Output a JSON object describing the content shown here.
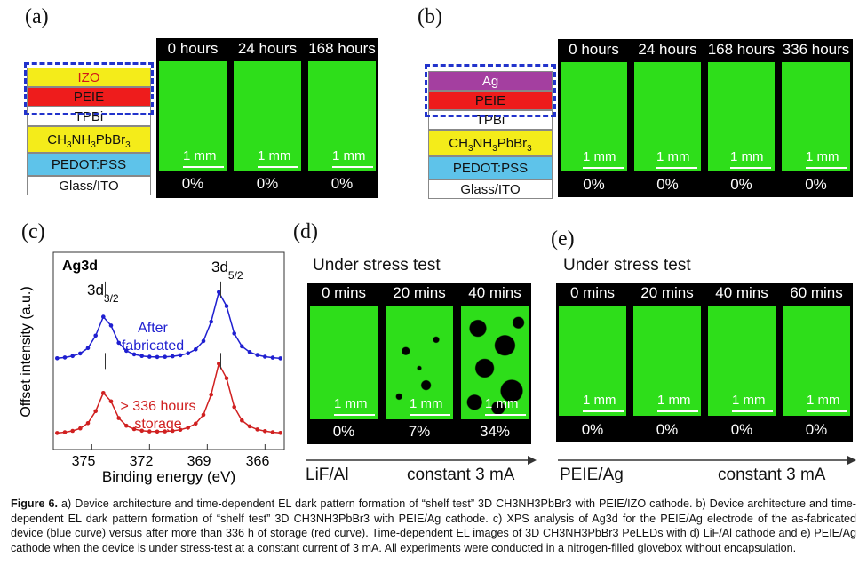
{
  "panel_a": {
    "label": "(a)",
    "layers": [
      "IZO",
      "PEIE",
      "TPBi",
      "CH3NH3PbBr3",
      "PEDOT:PSS",
      "Glass/ITO"
    ],
    "tiles": [
      {
        "time": "0 hours",
        "pct": "0%",
        "scale": "1 mm"
      },
      {
        "time": "24 hours",
        "pct": "0%",
        "scale": "1 mm"
      },
      {
        "time": "168 hours",
        "pct": "0%",
        "scale": "1 mm"
      }
    ]
  },
  "panel_b": {
    "label": "(b)",
    "layers": [
      "Ag",
      "PEIE",
      "TPBi",
      "CH3NH3PbBr3",
      "PEDOT:PSS",
      "Glass/ITO"
    ],
    "tiles": [
      {
        "time": "0 hours",
        "pct": "0%",
        "scale": "1 mm"
      },
      {
        "time": "24 hours",
        "pct": "0%",
        "scale": "1 mm"
      },
      {
        "time": "168 hours",
        "pct": "0%",
        "scale": "1 mm"
      },
      {
        "time": "336 hours",
        "pct": "0%",
        "scale": "1 mm"
      }
    ]
  },
  "panel_c": {
    "label": "(c)",
    "chart_data": {
      "type": "line",
      "title": "Ag3d",
      "xlabel": "Binding energy (eV)",
      "ylabel": "Offset intensity (a.u.)",
      "xlim": [
        377,
        365
      ],
      "xticks": [
        "375",
        "372",
        "369",
        "366"
      ],
      "peak_labels": {
        "d32": "3d",
        "d32_sub": "3/2",
        "d52": "3d",
        "d52_sub": "5/2"
      },
      "series": [
        {
          "name": "After fabricated",
          "label_lines": [
            "After",
            "fabricated"
          ],
          "color": "#1f1fd0",
          "peaks": [
            374.3,
            368.3
          ]
        },
        {
          "name": "> 336 hours storage",
          "label_lines": [
            "> 336 hours",
            "storage"
          ],
          "color": "#d02020",
          "peaks": [
            374.3,
            368.3
          ]
        }
      ]
    }
  },
  "panel_d": {
    "label": "(d)",
    "stress": "Under stress test",
    "tiles": [
      {
        "time": "0 mins",
        "pct": "0%",
        "scale": "1 mm"
      },
      {
        "time": "20 mins",
        "pct": "7%",
        "scale": "1 mm"
      },
      {
        "time": "40 mins",
        "pct": "34%",
        "scale": "1 mm"
      }
    ],
    "cathode": "LiF/Al",
    "current": "constant 3 mA"
  },
  "panel_e": {
    "label": "(e)",
    "stress": "Under stress test",
    "tiles": [
      {
        "time": "0 mins",
        "pct": "0%",
        "scale": "1 mm"
      },
      {
        "time": "20 mins",
        "pct": "0%",
        "scale": "1 mm"
      },
      {
        "time": "40 mins",
        "pct": "0%",
        "scale": "1 mm"
      },
      {
        "time": "60 mins",
        "pct": "0%",
        "scale": "1 mm"
      }
    ],
    "cathode": "PEIE/Ag",
    "current": "constant 3 mA"
  },
  "caption": {
    "figure": "Figure 6.",
    "text": "a) Device architecture and time-dependent EL dark pattern formation of “shelf test” 3D CH3NH3PbBr3 with PEIE/IZO cathode. b) Device architecture and time-dependent EL dark pattern formation of “shelf test” 3D CH3NH3PbBr3 with PEIE/Ag cathode. c) XPS analysis of Ag3d for the PEIE/Ag electrode of the as-fabricated device (blue curve) versus after more than 336 h of storage (red curve). Time-dependent EL images of 3D CH3NH3PbBr3 PeLEDs with d) LiF/Al cathode and e) PEIE/Ag cathode when the device is under stress-test at a constant current of 3 mA. All experiments were conducted in a nitrogen-filled glovebox without encapsulation."
  },
  "colors": {
    "izo": "#f4ec1a",
    "peie": "#ee1c1c",
    "tpbi": "#ffffff",
    "perov": "#f4ec1a",
    "pedot": "#5ec3ea",
    "glass": "#ffffff",
    "ag": "#a43fa0",
    "dash": "#2233cc",
    "el_green": "#2ede1a"
  }
}
